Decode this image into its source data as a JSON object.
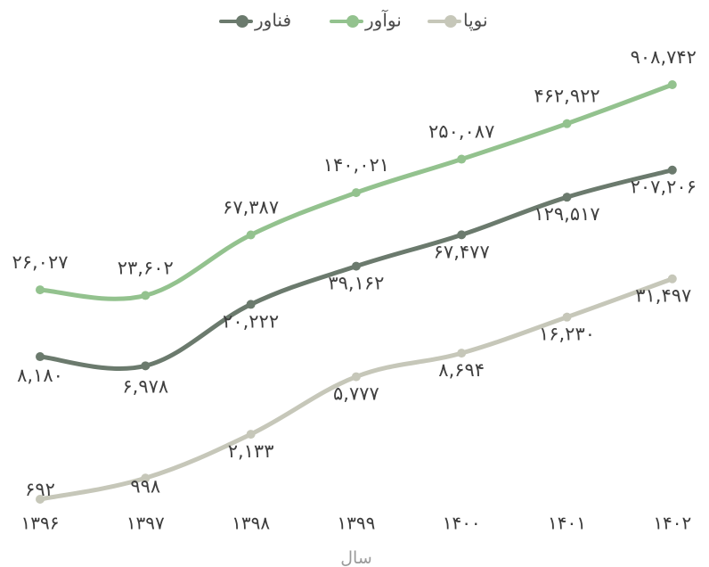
{
  "chart_data": {
    "type": "line",
    "xlabel": "سال",
    "x": [
      "۱۳۹۶",
      "۱۳۹۷",
      "۱۳۹۸",
      "۱۳۹۹",
      "۱۴۰۰",
      "۱۴۰۱",
      "۱۴۰۲"
    ],
    "legend_position": "top-center",
    "grid": false,
    "y_scale": "log",
    "series": [
      {
        "name": "فناور",
        "color": "#6b7a6d",
        "values": [
          8180,
          6978,
          20222,
          39162,
          67477,
          129517,
          207206
        ],
        "labels": [
          "۸,۱۸۰",
          "۶,۹۷۸",
          "۲۰,۲۲۲",
          "۳۹,۱۶۲",
          "۶۷,۴۷۷",
          "۱۲۹,۵۱۷",
          "۲۰۷,۲۰۶"
        ]
      },
      {
        "name": "نوآور",
        "color": "#93c28e",
        "values": [
          26027,
          23602,
          67387,
          140021,
          250087,
          462922,
          908742
        ],
        "labels": [
          "۲۶,۰۲۷",
          "۲۳,۶۰۲",
          "۶۷,۳۸۷",
          "۱۴۰,۰۲۱",
          "۲۵۰,۰۸۷",
          "۴۶۲,۹۲۲",
          "۹۰۸,۷۴۲"
        ]
      },
      {
        "name": "نوپا",
        "color": "#c6c7b9",
        "values": [
          692,
          998,
          2133,
          5777,
          8694,
          16230,
          31497
        ],
        "labels": [
          "۶۹۲",
          "۹۹۸",
          "۲,۱۳۳",
          "۵,۷۷۷",
          "۸,۶۹۴",
          "۱۶,۲۳۰",
          "۳۱,۴۹۷"
        ]
      }
    ]
  }
}
